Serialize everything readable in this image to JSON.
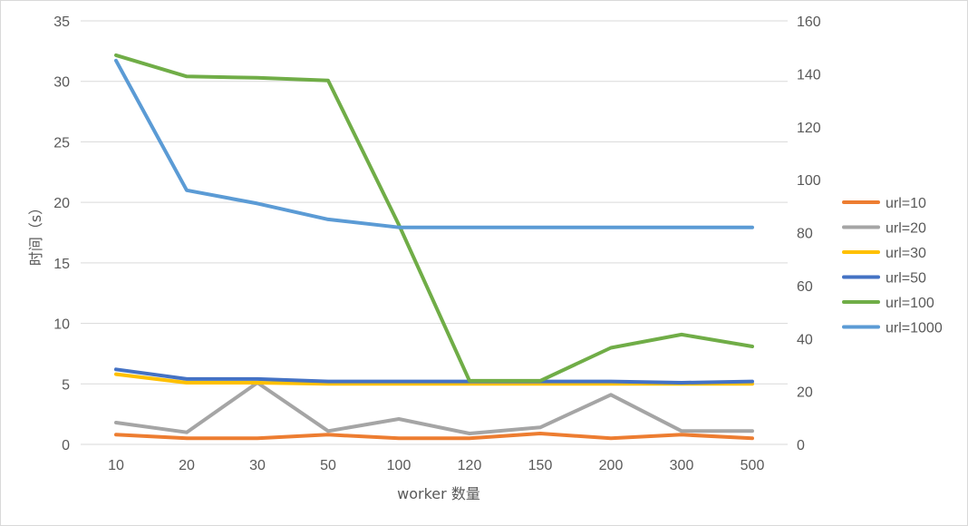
{
  "chart_data": {
    "type": "line",
    "title": "",
    "xlabel": "worker 数量",
    "ylabel": "时间（s）",
    "categories": [
      "10",
      "20",
      "30",
      "50",
      "100",
      "120",
      "150",
      "200",
      "300",
      "500"
    ],
    "y_left": {
      "min": 0,
      "max": 35,
      "step": 5,
      "ticks": [
        "0",
        "5",
        "10",
        "15",
        "20",
        "25",
        "30",
        "35"
      ]
    },
    "y_right": {
      "min": 0,
      "max": 160,
      "step": 20,
      "ticks": [
        "0",
        "20",
        "40",
        "60",
        "80",
        "100",
        "120",
        "140",
        "160"
      ]
    },
    "grid": true,
    "legend_position": "right",
    "series": [
      {
        "name": "url=10",
        "axis": "left",
        "color": "#ed7d31",
        "values": [
          0.8,
          0.5,
          0.5,
          0.8,
          0.5,
          0.5,
          0.9,
          0.5,
          0.8,
          0.5
        ]
      },
      {
        "name": "url=20",
        "axis": "left",
        "color": "#a5a5a5",
        "values": [
          1.8,
          1.0,
          5.1,
          1.1,
          2.1,
          0.9,
          1.4,
          4.1,
          1.1,
          1.1
        ]
      },
      {
        "name": "url=30",
        "axis": "left",
        "color": "#ffc000",
        "values": [
          5.8,
          5.1,
          5.1,
          5.0,
          5.0,
          5.0,
          5.0,
          5.0,
          5.0,
          5.0
        ]
      },
      {
        "name": "url=50",
        "axis": "left",
        "color": "#4472c4",
        "values": [
          6.2,
          5.4,
          5.4,
          5.2,
          5.2,
          5.2,
          5.2,
          5.2,
          5.1,
          5.2
        ]
      },
      {
        "name": "url=100",
        "axis": "right",
        "color": "#70ad47",
        "values": [
          147,
          139,
          138.5,
          137.5,
          83,
          24,
          24,
          36.5,
          41.5,
          37
        ]
      },
      {
        "name": "url=1000",
        "axis": "right",
        "color": "#5b9bd5",
        "values": [
          145,
          96,
          91,
          85,
          82,
          82,
          82,
          82,
          82,
          82
        ]
      }
    ]
  }
}
